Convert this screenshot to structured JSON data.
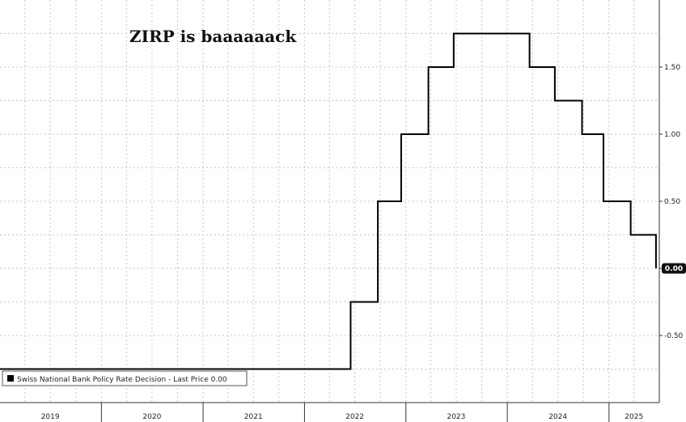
{
  "chart_data": {
    "type": "line",
    "title": "ZIRP is baaaaaack",
    "xlabel": "",
    "ylabel": "",
    "step": true,
    "grid": true,
    "y_axis_side": "right",
    "ylim": [
      -1.0,
      2.0
    ],
    "yticks": [
      -0.5,
      0.0,
      0.5,
      1.0,
      1.5
    ],
    "ytick_labels": [
      "-0.50",
      "0.00",
      "0.50",
      "1.00",
      "1.50"
    ],
    "xlim": [
      "2019-01-01",
      "2025-07-01"
    ],
    "x_labels": [
      "2019",
      "2020",
      "2021",
      "2022",
      "2023",
      "2024",
      "2025"
    ],
    "x_label_positions": [
      "2019-07-01",
      "2020-07-01",
      "2021-07-01",
      "2022-07-01",
      "2023-07-01",
      "2024-07-01",
      "2025-04-01"
    ],
    "x_boundaries": [
      "2020-01-01",
      "2021-01-01",
      "2022-01-01",
      "2023-01-01",
      "2024-01-01",
      "2025-01-01"
    ],
    "legend": {
      "placement": "bottom-left",
      "text": "Swiss National Bank Policy Rate Decision - Last Price 0.00"
    },
    "last_value_label": "0.00",
    "series": [
      {
        "name": "Swiss National Bank Policy Rate Decision",
        "color": "#000000",
        "x": [
          "2019-01-01",
          "2022-06-16",
          "2022-09-22",
          "2022-12-15",
          "2023-03-23",
          "2023-06-22",
          "2024-03-21",
          "2024-06-20",
          "2024-09-26",
          "2024-12-12",
          "2025-03-20",
          "2025-06-19"
        ],
        "y": [
          -0.75,
          -0.25,
          0.5,
          1.0,
          1.5,
          1.75,
          1.5,
          1.25,
          1.0,
          0.5,
          0.25,
          0.0
        ]
      }
    ]
  }
}
